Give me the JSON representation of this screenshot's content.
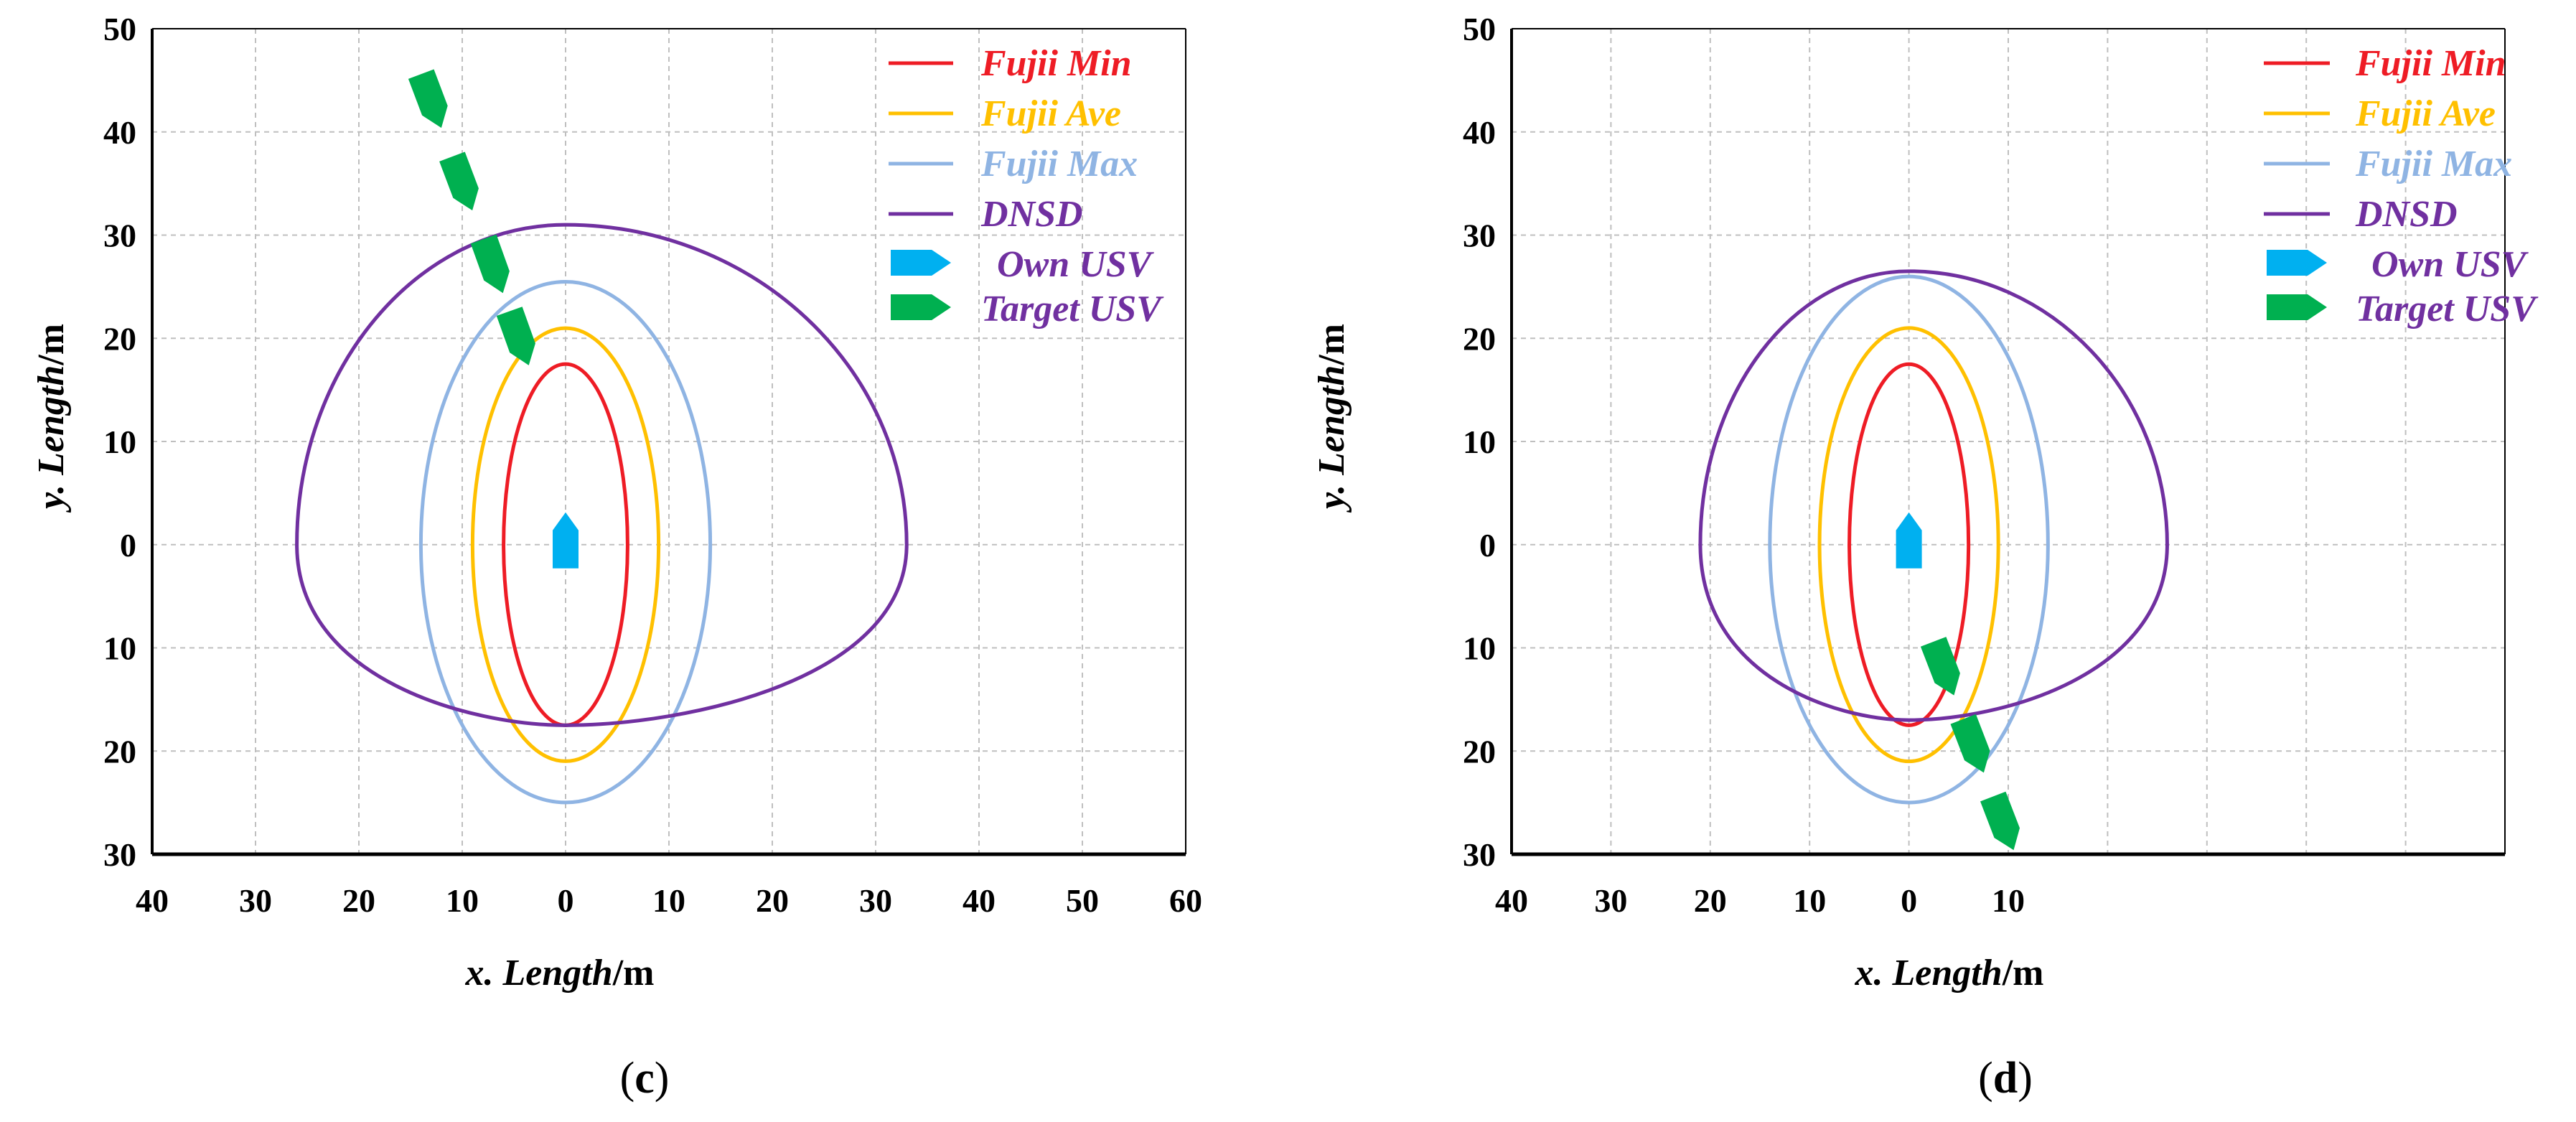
{
  "chart_data": [
    {
      "type": "line",
      "panel": "c",
      "caption": "c",
      "title": "",
      "xlabel": "x. Length/m",
      "ylabel": "y. Length/m",
      "xlabel_var": "x. Length",
      "ylabel_var": "y. Length",
      "unit": "/m",
      "xlim": [
        -40,
        60
      ],
      "ylim": [
        -30,
        50
      ],
      "x_tick_values": [
        -40,
        -30,
        -20,
        -10,
        0,
        10,
        20,
        30,
        40,
        50,
        60
      ],
      "x_tick_labels": [
        "40",
        "30",
        "20",
        "10",
        "0",
        "10",
        "20",
        "30",
        "40",
        "50",
        "60"
      ],
      "y_tick_values": [
        50,
        40,
        30,
        20,
        10,
        0,
        -10,
        -20,
        -30
      ],
      "y_tick_labels": [
        "50",
        "40",
        "30",
        "20",
        "10",
        "0",
        "10",
        "20",
        "30"
      ],
      "grid": true,
      "legend_position": "top-right",
      "series": [
        {
          "name": "Fujii Min",
          "kind": "ellipse",
          "color": "#ee1c25",
          "center": [
            0,
            0
          ],
          "x_extent": [
            -6,
            6
          ],
          "y_extent": [
            -17.5,
            17.5
          ]
        },
        {
          "name": "Fujii Ave",
          "kind": "ellipse",
          "color": "#ffc000",
          "center": [
            0,
            0
          ],
          "x_extent": [
            -9,
            9
          ],
          "y_extent": [
            -21,
            21
          ]
        },
        {
          "name": "Fujii Max",
          "kind": "ellipse",
          "color": "#8fb4e3",
          "center": [
            0,
            0
          ],
          "x_extent": [
            -14,
            14
          ],
          "y_extent": [
            -25,
            25.5
          ]
        },
        {
          "name": "DNSD",
          "kind": "domain",
          "color": "#7030a0",
          "x_extent": [
            -26,
            33
          ],
          "y_extent": [
            -17.5,
            31
          ]
        }
      ],
      "own_usv": {
        "name": "Own USV",
        "color": "#00b0f0",
        "x": 0,
        "y": 0,
        "heading": "north"
      },
      "target_usv": {
        "name": "Target USV",
        "color": "#00b050",
        "positions": [
          {
            "x": -13,
            "y": 43
          },
          {
            "x": -10,
            "y": 35
          },
          {
            "x": -7,
            "y": 27
          },
          {
            "x": -4.5,
            "y": 20
          }
        ],
        "heading": "south-east"
      }
    },
    {
      "type": "line",
      "panel": "d",
      "caption": "d",
      "title": "",
      "xlabel": "x. Length/m",
      "ylabel": "y. Length/m",
      "xlabel_var": "x. Length",
      "ylabel_var": "y. Length",
      "unit": "/m",
      "xlim": [
        -40,
        60
      ],
      "ylim": [
        -30,
        50
      ],
      "x_tick_values": [
        -40,
        -30,
        -20,
        -10,
        0,
        10
      ],
      "x_tick_labels": [
        "40",
        "30",
        "20",
        "10",
        "0",
        "10"
      ],
      "y_tick_values": [
        50,
        40,
        30,
        20,
        10,
        0,
        -10,
        -20,
        -30
      ],
      "y_tick_labels": [
        "50",
        "40",
        "30",
        "20",
        "10",
        "0",
        "10",
        "20",
        "30"
      ],
      "grid": true,
      "legend_position": "top-right",
      "series": [
        {
          "name": "Fujii Min",
          "kind": "ellipse",
          "color": "#ee1c25",
          "center": [
            0,
            0
          ],
          "x_extent": [
            -6,
            6
          ],
          "y_extent": [
            -17.5,
            17.5
          ]
        },
        {
          "name": "Fujii Ave",
          "kind": "ellipse",
          "color": "#ffc000",
          "center": [
            0,
            0
          ],
          "x_extent": [
            -9,
            9
          ],
          "y_extent": [
            -21,
            21
          ]
        },
        {
          "name": "Fujii Max",
          "kind": "ellipse",
          "color": "#8fb4e3",
          "center": [
            0,
            0
          ],
          "x_extent": [
            -14,
            14
          ],
          "y_extent": [
            -25,
            26
          ]
        },
        {
          "name": "DNSD",
          "kind": "domain",
          "color": "#7030a0",
          "x_extent": [
            -21,
            26
          ],
          "y_extent": [
            -17,
            26.5
          ]
        }
      ],
      "own_usv": {
        "name": "Own USV",
        "color": "#00b0f0",
        "x": 0,
        "y": 0,
        "heading": "north"
      },
      "target_usv": {
        "name": "Target USV",
        "color": "#00b050",
        "positions": [
          {
            "x": 3.5,
            "y": -12
          },
          {
            "x": 6.5,
            "y": -19.5
          },
          {
            "x": 9.5,
            "y": -27
          }
        ],
        "heading": "south-east"
      }
    }
  ]
}
